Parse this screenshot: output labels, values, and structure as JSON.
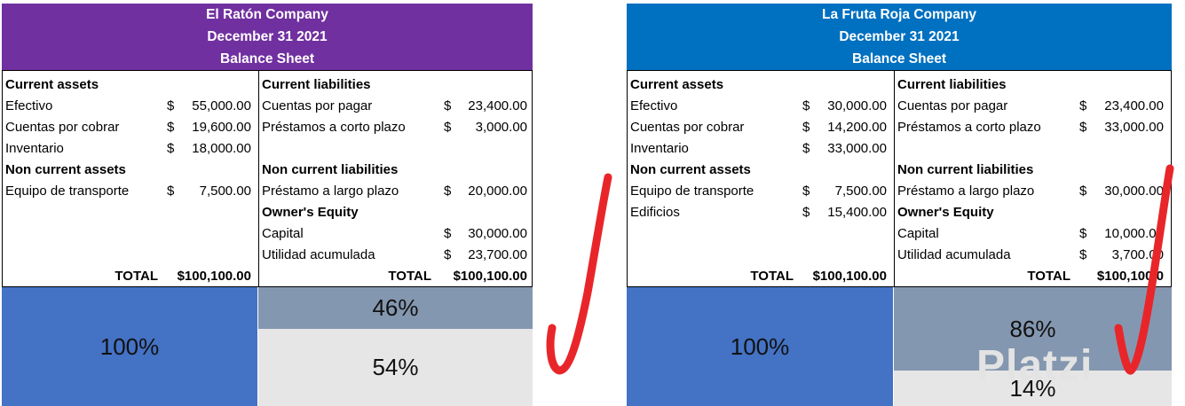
{
  "left": {
    "header": {
      "company": "El Ratón Company",
      "date": "December 31 2021",
      "title": "Balance Sheet",
      "color": "#7030a0"
    },
    "assets": {
      "current_title": "Current assets",
      "current": [
        {
          "label": "Efectivo",
          "cur": "$",
          "amount": "55,000.00"
        },
        {
          "label": "Cuentas por cobrar",
          "cur": "$",
          "amount": "19,600.00"
        },
        {
          "label": "Inventario",
          "cur": "$",
          "amount": "18,000.00"
        }
      ],
      "noncurrent_title": "Non current assets",
      "noncurrent": [
        {
          "label": "Equipo de transporte",
          "cur": "$",
          "amount": "7,500.00"
        }
      ],
      "total_label": "TOTAL",
      "total": "$100,100.00"
    },
    "liabilities": {
      "current_title": "Current liabilities",
      "current": [
        {
          "label": "Cuentas por pagar",
          "cur": "$",
          "amount": "23,400.00"
        },
        {
          "label": "Préstamos a corto plazo",
          "cur": "$",
          "amount": "3,000.00"
        }
      ],
      "noncurrent_title": "Non current liabilities",
      "noncurrent": [
        {
          "label": "Préstamo a largo plazo",
          "cur": "$",
          "amount": "20,000.00"
        }
      ],
      "equity_title": "Owner's Equity",
      "equity": [
        {
          "label": "Capital",
          "cur": "$",
          "amount": "30,000.00"
        },
        {
          "label": "Utilidad acumulada",
          "cur": "$",
          "amount": "23,700.00"
        }
      ],
      "total_label": "TOTAL",
      "total": "$100,100.00"
    },
    "blocks": {
      "assets_pct": "100%",
      "liab_pct": "46%",
      "equity_pct": "54%",
      "liab_fraction": 0.46
    }
  },
  "right": {
    "header": {
      "company": "La Fruta Roja Company",
      "date": "December 31 2021",
      "title": "Balance Sheet",
      "color": "#0070c0"
    },
    "assets": {
      "current_title": "Current assets",
      "current": [
        {
          "label": "Efectivo",
          "cur": "$",
          "amount": "30,000.00"
        },
        {
          "label": "Cuentas por cobrar",
          "cur": "$",
          "amount": "14,200.00"
        },
        {
          "label": "Inventario",
          "cur": "$",
          "amount": "33,000.00"
        }
      ],
      "noncurrent_title": "Non current assets",
      "noncurrent": [
        {
          "label": "Equipo de transporte",
          "cur": "$",
          "amount": "7,500.00"
        },
        {
          "label": "Edificios",
          "cur": "$",
          "amount": "15,400.00"
        }
      ],
      "total_label": "TOTAL",
      "total": "$100,100.00"
    },
    "liabilities": {
      "current_title": "Current liabilities",
      "current": [
        {
          "label": "Cuentas por pagar",
          "cur": "$",
          "amount": "23,400.00"
        },
        {
          "label": "Préstamos a corto plazo",
          "cur": "$",
          "amount": "33,000.00"
        }
      ],
      "noncurrent_title": "Non current liabilities",
      "noncurrent": [
        {
          "label": "Préstamo a largo plazo",
          "cur": "$",
          "amount": "30,000.00"
        }
      ],
      "equity_title": "Owner's Equity",
      "equity": [
        {
          "label": "Capital",
          "cur": "$",
          "amount": "10,000.00"
        },
        {
          "label": "Utilidad acumulada",
          "cur": "$",
          "amount": "3,700.00"
        }
      ],
      "total_label": "TOTAL",
      "total": "$100,100.0"
    },
    "blocks": {
      "assets_pct": "100%",
      "liab_pct": "86%",
      "equity_pct": "14%",
      "liab_fraction": 0.86
    }
  },
  "colors": {
    "assets_block": "#4472c4",
    "liab_block": "#8497b0",
    "equity_block": "#e7e6e6",
    "checkmark": "#e8262a"
  },
  "watermark": "Platzi"
}
